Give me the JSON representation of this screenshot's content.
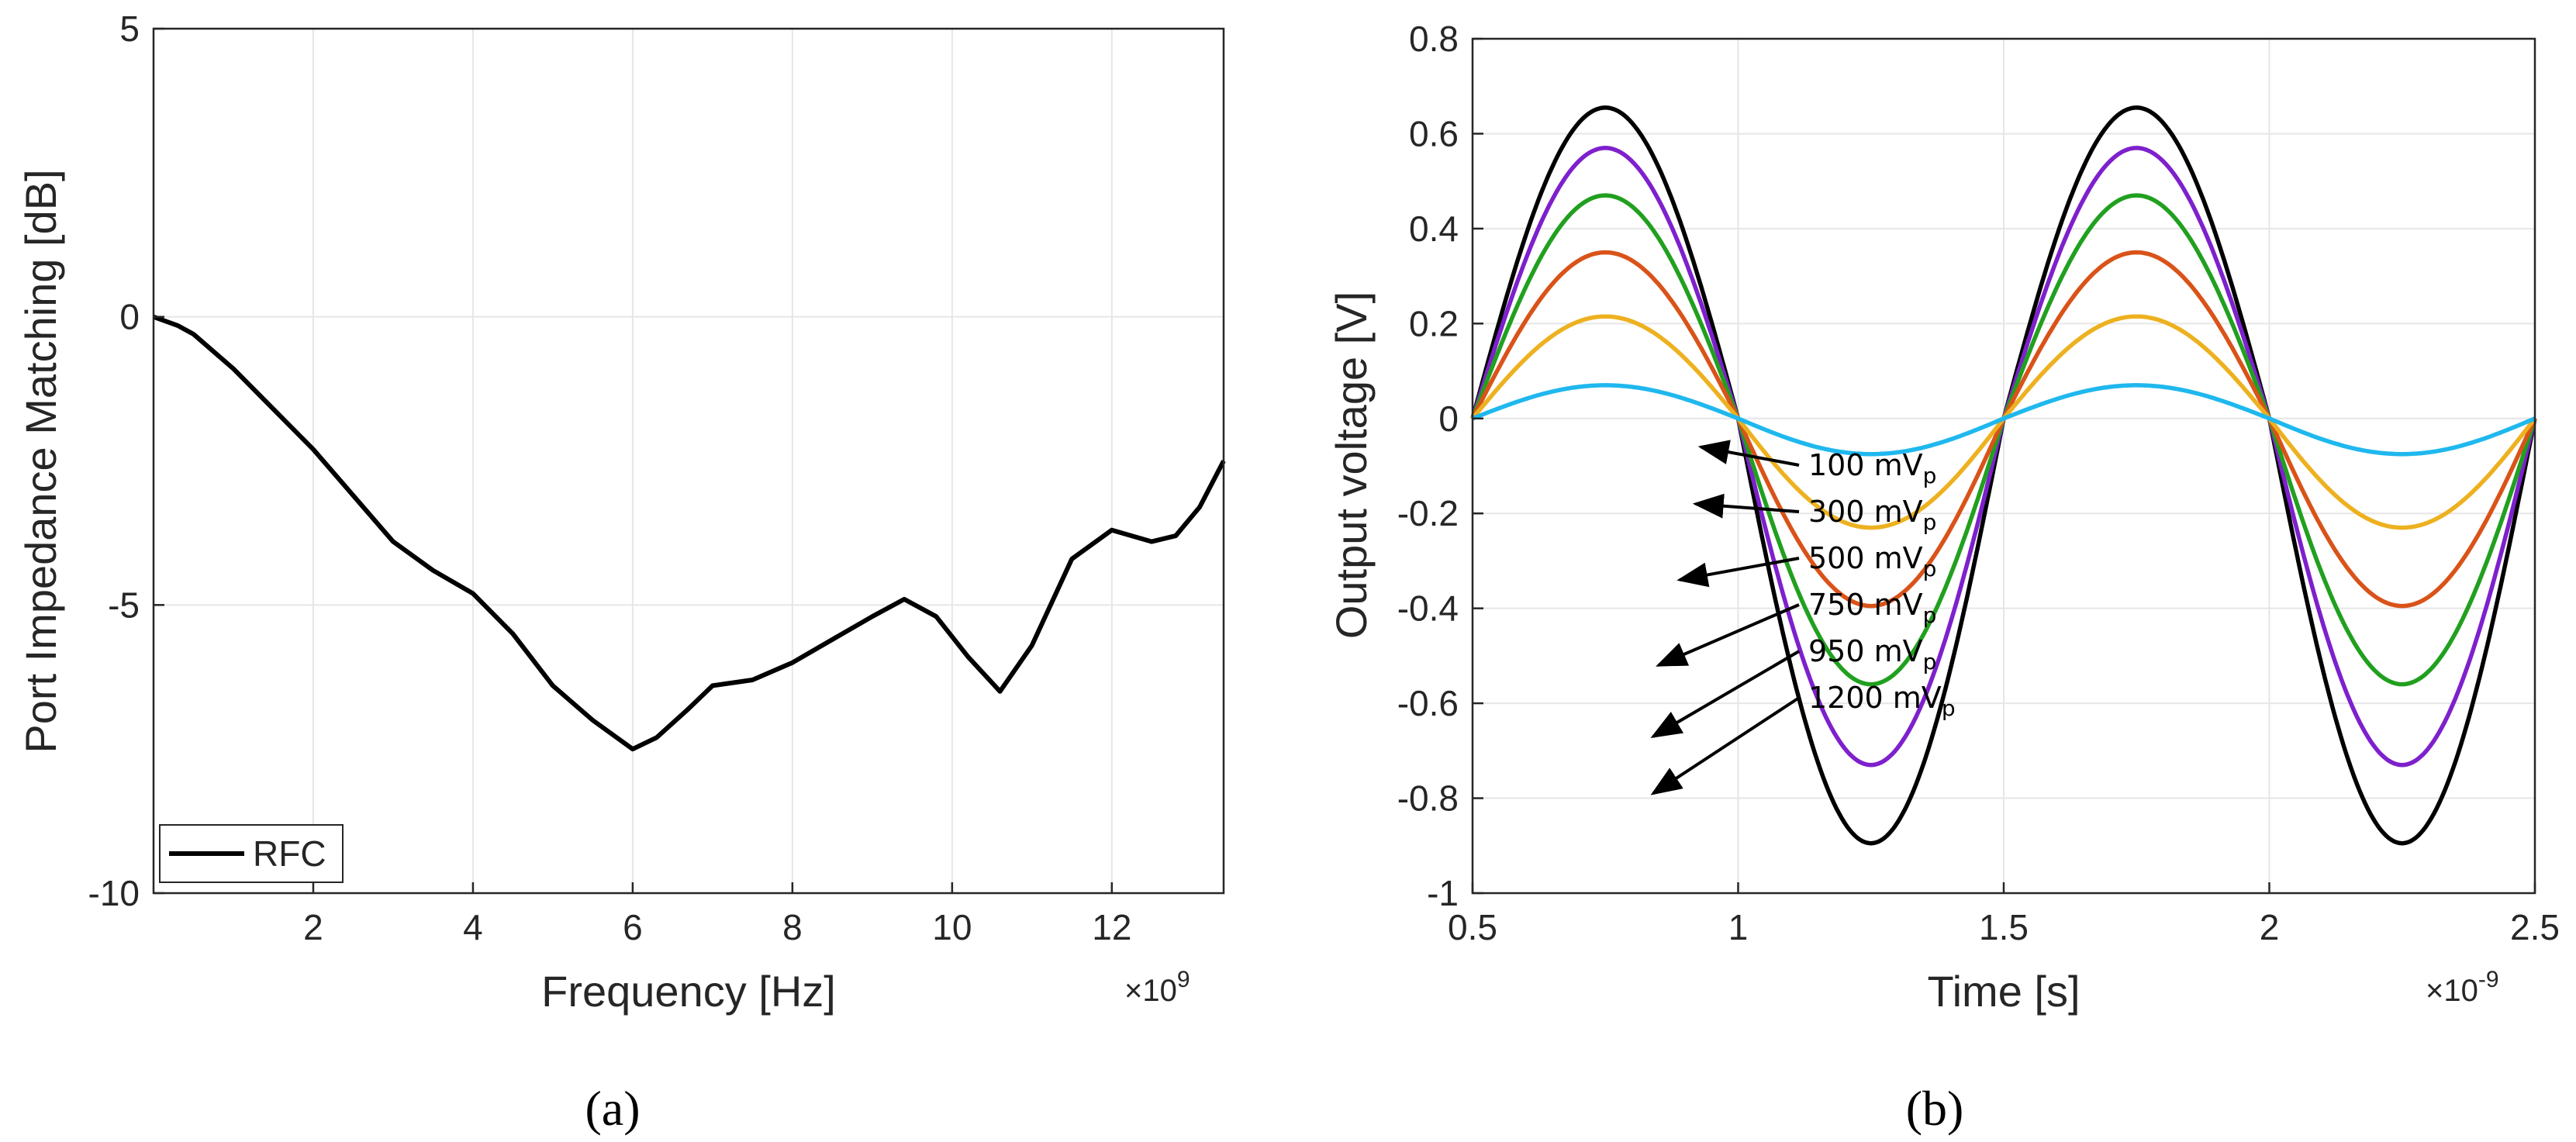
{
  "chart_data": [
    {
      "type": "line",
      "panel_label": "(a)",
      "xlabel": "Frequency [Hz]",
      "x_multiplier": "×10",
      "x_multiplier_exp": "9",
      "ylabel": "Port Impedance Matching  [dB]",
      "xlim": [
        0,
        13.4
      ],
      "ylim": [
        -10,
        5
      ],
      "xticks": [
        2,
        4,
        6,
        8,
        10,
        12
      ],
      "xtick_labels": [
        "2",
        "4",
        "6",
        "8",
        "10",
        "12"
      ],
      "yticks": [
        -10,
        -5,
        0,
        5
      ],
      "ytick_labels": [
        "-10",
        "-5",
        "0",
        "5"
      ],
      "grid": true,
      "legend": {
        "position": "bottom-left",
        "entries": [
          "RFC"
        ]
      },
      "series": [
        {
          "name": "RFC",
          "color": "#000000",
          "x": [
            0.0,
            0.3,
            0.5,
            1.0,
            1.5,
            2.0,
            2.5,
            3.0,
            3.5,
            4.0,
            4.5,
            5.0,
            5.5,
            6.0,
            6.3,
            6.7,
            7.0,
            7.5,
            8.0,
            8.5,
            9.0,
            9.4,
            9.8,
            10.2,
            10.6,
            11.0,
            11.5,
            12.0,
            12.5,
            12.8,
            13.1,
            13.4
          ],
          "y": [
            0.0,
            -0.15,
            -0.3,
            -0.9,
            -1.6,
            -2.3,
            -3.1,
            -3.9,
            -4.4,
            -4.8,
            -5.5,
            -6.4,
            -7.0,
            -7.5,
            -7.3,
            -6.8,
            -6.4,
            -6.3,
            -6.0,
            -5.6,
            -5.2,
            -4.9,
            -5.2,
            -5.9,
            -6.5,
            -5.7,
            -4.2,
            -3.7,
            -3.9,
            -3.8,
            -3.3,
            -2.5
          ]
        }
      ]
    },
    {
      "type": "line",
      "panel_label": "(b)",
      "xlabel": "Time [s]",
      "x_multiplier": "×10",
      "x_multiplier_exp": "-9",
      "ylabel": "Output voltage [V]",
      "xlim": [
        0.5,
        2.5
      ],
      "ylim": [
        -1,
        0.8
      ],
      "xticks": [
        0.5,
        1,
        1.5,
        2,
        2.5
      ],
      "xtick_labels": [
        "0.5",
        "1",
        "1.5",
        "2",
        "2.5"
      ],
      "yticks": [
        -1,
        -0.8,
        -0.6,
        -0.4,
        -0.2,
        0,
        0.2,
        0.4,
        0.6,
        0.8
      ],
      "ytick_labels": [
        "-1",
        "-0.8",
        "-0.6",
        "-0.4",
        "-0.2",
        "0",
        "0.2",
        "0.4",
        "0.6",
        "0.8"
      ],
      "grid": true,
      "series": [
        {
          "name": "100 mV",
          "sub": "p",
          "color": "#1fb8ee",
          "amplitude_neg": -0.075,
          "amplitude_pos": 0.07,
          "arrow_target": [
            0.93,
            -0.06
          ]
        },
        {
          "name": "300 mV",
          "sub": "p",
          "color": "#edb120",
          "amplitude_neg": -0.23,
          "amplitude_pos": 0.215,
          "arrow_target": [
            0.92,
            -0.18
          ]
        },
        {
          "name": "500 mV",
          "sub": "p",
          "color": "#d95319",
          "amplitude_neg": -0.395,
          "amplitude_pos": 0.35,
          "arrow_target": [
            0.89,
            -0.34
          ]
        },
        {
          "name": "750 mV",
          "sub": "p",
          "color": "#21a01f",
          "amplitude_neg": -0.56,
          "amplitude_pos": 0.47,
          "arrow_target": [
            0.85,
            -0.52
          ]
        },
        {
          "name": "950 mV",
          "sub": "p",
          "color": "#7e20cc",
          "amplitude_neg": -0.73,
          "amplitude_pos": 0.57,
          "arrow_target": [
            0.84,
            -0.67
          ]
        },
        {
          "name": "1200 mV",
          "sub": "p",
          "color": "#000000",
          "amplitude_neg": -0.895,
          "amplitude_pos": 0.655,
          "arrow_target": [
            0.84,
            -0.79
          ]
        }
      ]
    }
  ]
}
